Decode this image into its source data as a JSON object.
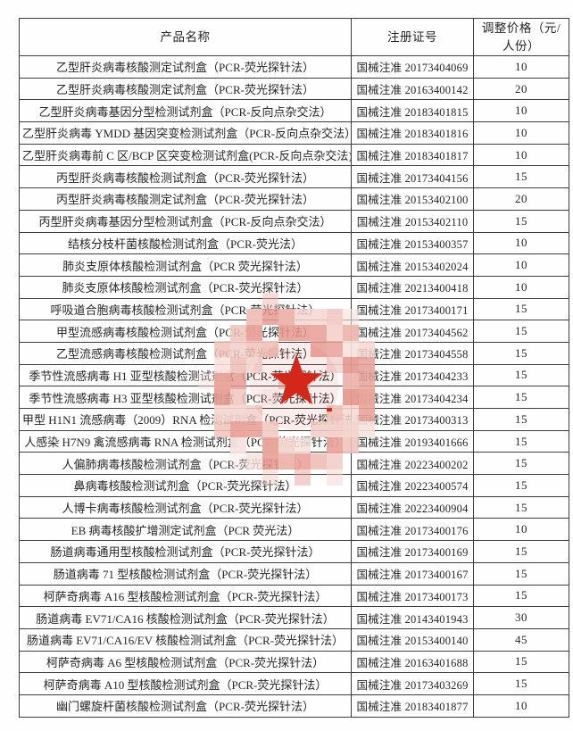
{
  "table": {
    "headers": [
      "产品名称",
      "注册证号",
      "调整价格（元/人份）"
    ],
    "rows": [
      [
        "乙型肝炎病毒核酸测定试剂盒（PCR-荧光探针法）",
        "国械注准 20173404069",
        "10"
      ],
      [
        "乙型肝炎病毒核酸测定试剂盒（PCR-荧光探针法）",
        "国械注准 20163400142",
        "20"
      ],
      [
        "乙型肝炎病毒基因分型检测试剂盒（PCR-反向点杂交法）",
        "国械注准 20183401815",
        "10"
      ],
      [
        "乙型肝炎病毒 YMDD 基因突变检测试剂盒（PCR-反向点杂交法）",
        "国械注准 20183401816",
        "10"
      ],
      [
        "乙型肝炎病毒前 C 区/BCP 区突变检测试剂盒(PCR-反向点杂交法)",
        "国械注准 20183401817",
        "10"
      ],
      [
        "丙型肝炎病毒核酸检测试剂盒（PCR-荧光探针法）",
        "国械注准 20173404156",
        "15"
      ],
      [
        "丙型肝炎病毒核酸测定试剂盒（PCR-荧光探针法）",
        "国械注准 20153402100",
        "20"
      ],
      [
        "丙型肝炎病毒基因分型检测试剂盒（PCR-反向点杂交法）",
        "国械注准 20153402110",
        "15"
      ],
      [
        "结核分枝杆菌核酸检测试剂盒（PCR-荧光法）",
        "国械注准 20153400357",
        "10"
      ],
      [
        "肺炎支原体核酸检测试剂盒（PCR 荧光探针法）",
        "国械注准 20153402024",
        "10"
      ],
      [
        "肺炎支原体核酸检测试剂盒（PCR-荧光探针法）",
        "国械注准 20213400418",
        "10"
      ],
      [
        "呼吸道合胞病毒核酸检测试剂盒（PCR-荧光探针法）",
        "国械注准 20173400171",
        "15"
      ],
      [
        "甲型流感病毒核酸检测试剂盒（PCR-荧光探针法）",
        "国械注准 20173404562",
        "15"
      ],
      [
        "乙型流感病毒核酸检测试剂盒（PCR-荧光探针法）",
        "国械注准 20173404558",
        "15"
      ],
      [
        "季节性流感病毒 H1 亚型核酸检测试剂盒（PCR-荧光探针法）",
        "国械注准 20173404233",
        "15"
      ],
      [
        "季节性流感病毒 H3 亚型核酸检测试剂盒（PCR-荧光探针法）",
        "国械注准 20173404234",
        "15"
      ],
      [
        "甲型 H1N1 流感病毒（2009）RNA 检测试剂盒（PCR-荧光探针法）",
        "国械注准 20173400313",
        "15"
      ],
      [
        "人感染 H7N9 禽流感病毒 RNA 检测试剂盒（PCR-荧光探针法）",
        "国械注准 20193401666",
        "15"
      ],
      [
        "人偏肺病毒核酸检测试剂盒（PCR-荧光探针法）",
        "国械注准 20223400202",
        "15"
      ],
      [
        "鼻病毒核酸检测试剂盒（PCR-荧光探针法）",
        "国械注准 20223400574",
        "15"
      ],
      [
        "人博卡病毒核酸检测试剂盒（PCR-荧光探针法）",
        "国械注准 20223400904",
        "15"
      ],
      [
        "EB 病毒核酸扩增测定试剂盒（PCR 荧光法）",
        "国械注准 20173400176",
        "10"
      ],
      [
        "肠道病毒通用型核酸检测试剂盒（PCR-荧光探针法）",
        "国械注准 20173400169",
        "15"
      ],
      [
        "肠道病毒 71 型核酸检测试剂盒（PCR-荧光探针法）",
        "国械注准 20173400167",
        "15"
      ],
      [
        "柯萨奇病毒 A16 型核酸检测试剂盒（PCR-荧光探针法）",
        "国械注准 20173400173",
        "15"
      ],
      [
        "肠道病毒 EV71/CA16 核酸检测试剂盒（PCR-荧光探针法）",
        "国械注准 20143401943",
        "30"
      ],
      [
        "肠道病毒 EV71/CA16/EV 核酸检测试剂盒（PCR-荧光探针法）",
        "国械注准 20153400140",
        "45"
      ],
      [
        "柯萨奇病毒 A6 型核酸检测试剂盒（PCR-荧光探针法）",
        "国械注准 20163401688",
        "15"
      ],
      [
        "柯萨奇病毒 A10 型核酸检测试剂盒（PCR-荧光探针法）",
        "国械注准 20173403269",
        "15"
      ],
      [
        "幽门螺旋杆菌核酸检测试剂盒（PCR-荧光探针法）",
        "国械注准 20183401877",
        "10"
      ]
    ]
  },
  "stamp": {
    "star_color": "#d1281a",
    "center_tint": "#e05a4a",
    "ring_palette": [
      "#f7e1dd",
      "#f2cdc8",
      "#edb7af",
      "#e8a49b",
      "#f4d5d0",
      "#efc2ba",
      "#e69a90"
    ]
  }
}
